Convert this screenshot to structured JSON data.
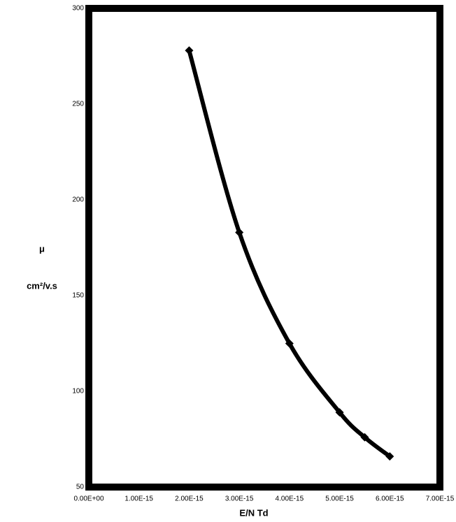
{
  "chart_data": {
    "type": "line",
    "xlabel": "E/N Td",
    "ylabel": "μ",
    "ylabel_unit": "cm²/v.s",
    "x": [
      2e-15,
      3e-15,
      4e-15,
      5e-15,
      5.5e-15,
      6e-15
    ],
    "series": [
      {
        "name": "μ",
        "color": "#000000",
        "values": [
          278,
          183,
          125,
          89,
          76,
          66
        ]
      }
    ],
    "xlim": [
      0,
      7e-15
    ],
    "xticks": [
      {
        "value": 0,
        "label": "0.00E+00"
      },
      {
        "value": 1e-15,
        "label": "1.00E-15"
      },
      {
        "value": 2e-15,
        "label": "2.00E-15"
      },
      {
        "value": 3e-15,
        "label": "3.00E-15"
      },
      {
        "value": 4e-15,
        "label": "4.00E-15"
      },
      {
        "value": 5e-15,
        "label": "5.00E-15"
      },
      {
        "value": 6e-15,
        "label": "6.00E-15"
      },
      {
        "value": 7e-15,
        "label": "7.00E-15"
      }
    ],
    "ylim": [
      50,
      300
    ],
    "yticks": [
      50,
      100,
      150,
      200,
      250,
      300
    ],
    "grid": false
  }
}
